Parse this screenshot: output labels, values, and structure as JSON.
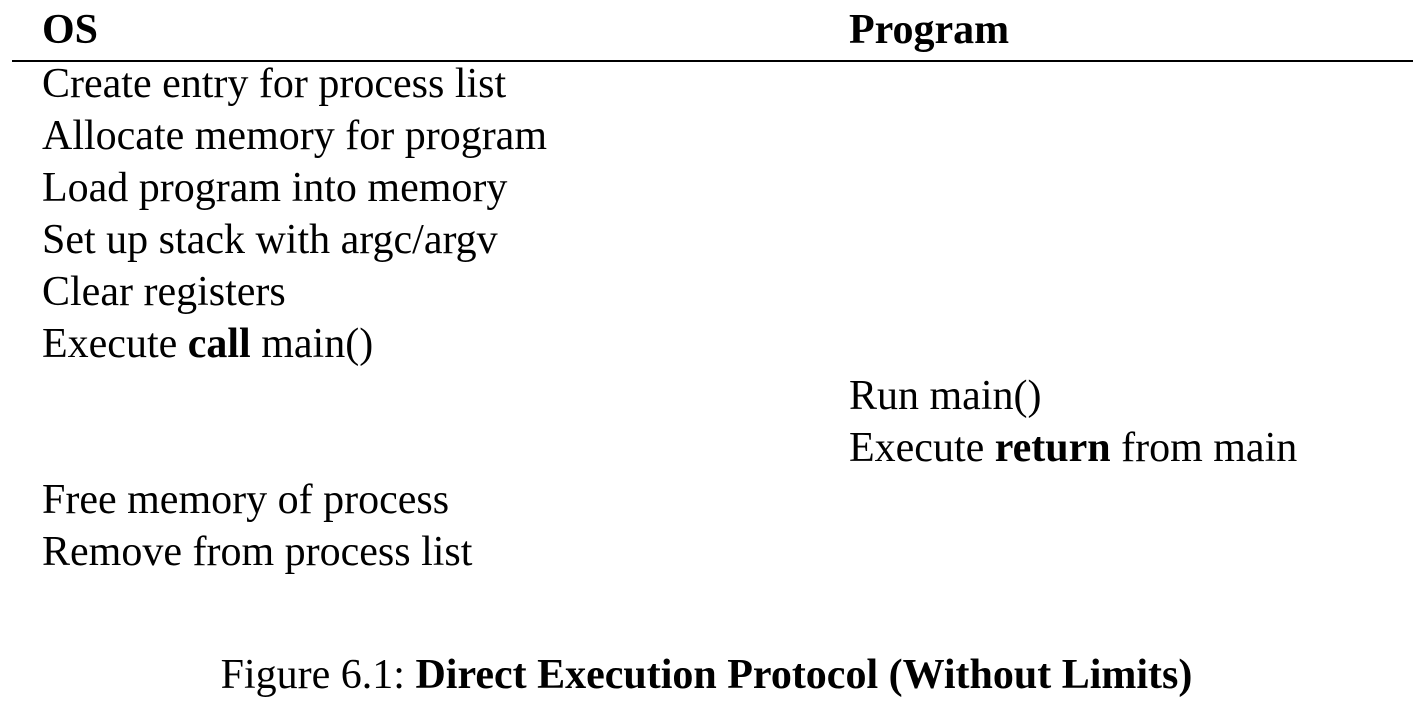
{
  "table": {
    "headers": {
      "os": "OS",
      "program": "Program"
    },
    "os_steps_before": [
      {
        "pre": "Create entry for process list",
        "bold": "",
        "post": ""
      },
      {
        "pre": "Allocate memory for program",
        "bold": "",
        "post": ""
      },
      {
        "pre": "Load program into memory",
        "bold": "",
        "post": ""
      },
      {
        "pre": "Set up stack with argc/argv",
        "bold": "",
        "post": ""
      },
      {
        "pre": "Clear registers",
        "bold": "",
        "post": ""
      },
      {
        "pre": "Execute ",
        "bold": "call",
        "post": " main()"
      }
    ],
    "program_steps": [
      {
        "pre": "Run main()",
        "bold": "",
        "post": ""
      },
      {
        "pre": "Execute ",
        "bold": "return",
        "post": " from main"
      }
    ],
    "os_steps_after": [
      {
        "pre": "Free memory of process",
        "bold": "",
        "post": ""
      },
      {
        "pre": "Remove from process list",
        "bold": "",
        "post": ""
      }
    ]
  },
  "caption": {
    "label": "Figure 6.1: ",
    "title": "Direct Execution Protocol (Without Limits)"
  }
}
